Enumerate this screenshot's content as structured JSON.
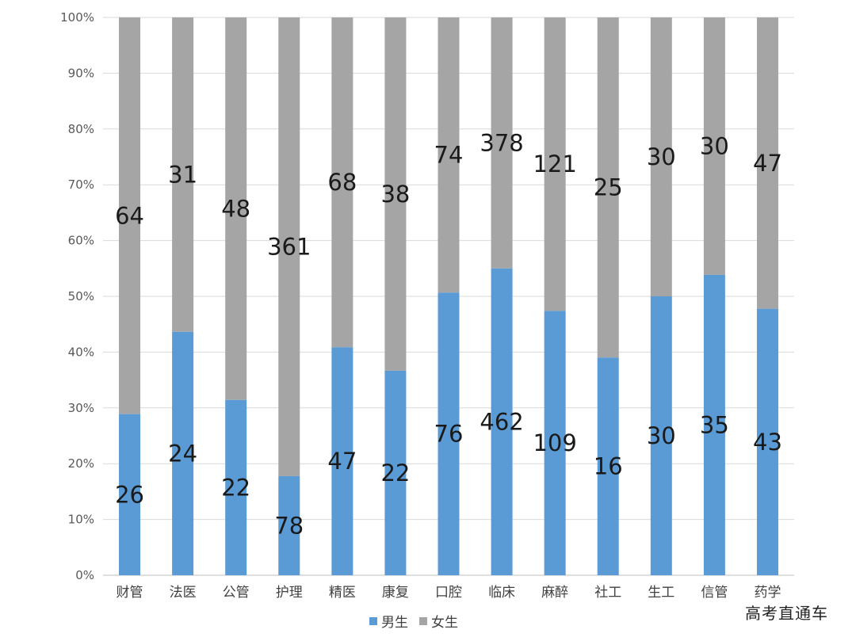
{
  "chart_data": {
    "type": "bar",
    "stacked": true,
    "normalized": "percent",
    "categories": [
      "财管",
      "法医",
      "公管",
      "护理",
      "精医",
      "康复",
      "口腔",
      "临床",
      "麻醉",
      "社工",
      "生工",
      "信管",
      "药学"
    ],
    "series": [
      {
        "name": "男生",
        "color": "#5b9bd5",
        "values": [
          26,
          24,
          22,
          78,
          47,
          22,
          76,
          462,
          109,
          16,
          30,
          35,
          43
        ]
      },
      {
        "name": "女生",
        "color": "#a5a5a5",
        "values": [
          64,
          31,
          48,
          361,
          68,
          38,
          74,
          378,
          121,
          25,
          30,
          30,
          47
        ]
      }
    ],
    "y_ticks": [
      "0%",
      "10%",
      "20%",
      "30%",
      "40%",
      "50%",
      "60%",
      "70%",
      "80%",
      "90%",
      "100%"
    ],
    "ylim": [
      0,
      100
    ],
    "grid": true,
    "legend_position": "bottom"
  },
  "watermark": "高考直通车"
}
